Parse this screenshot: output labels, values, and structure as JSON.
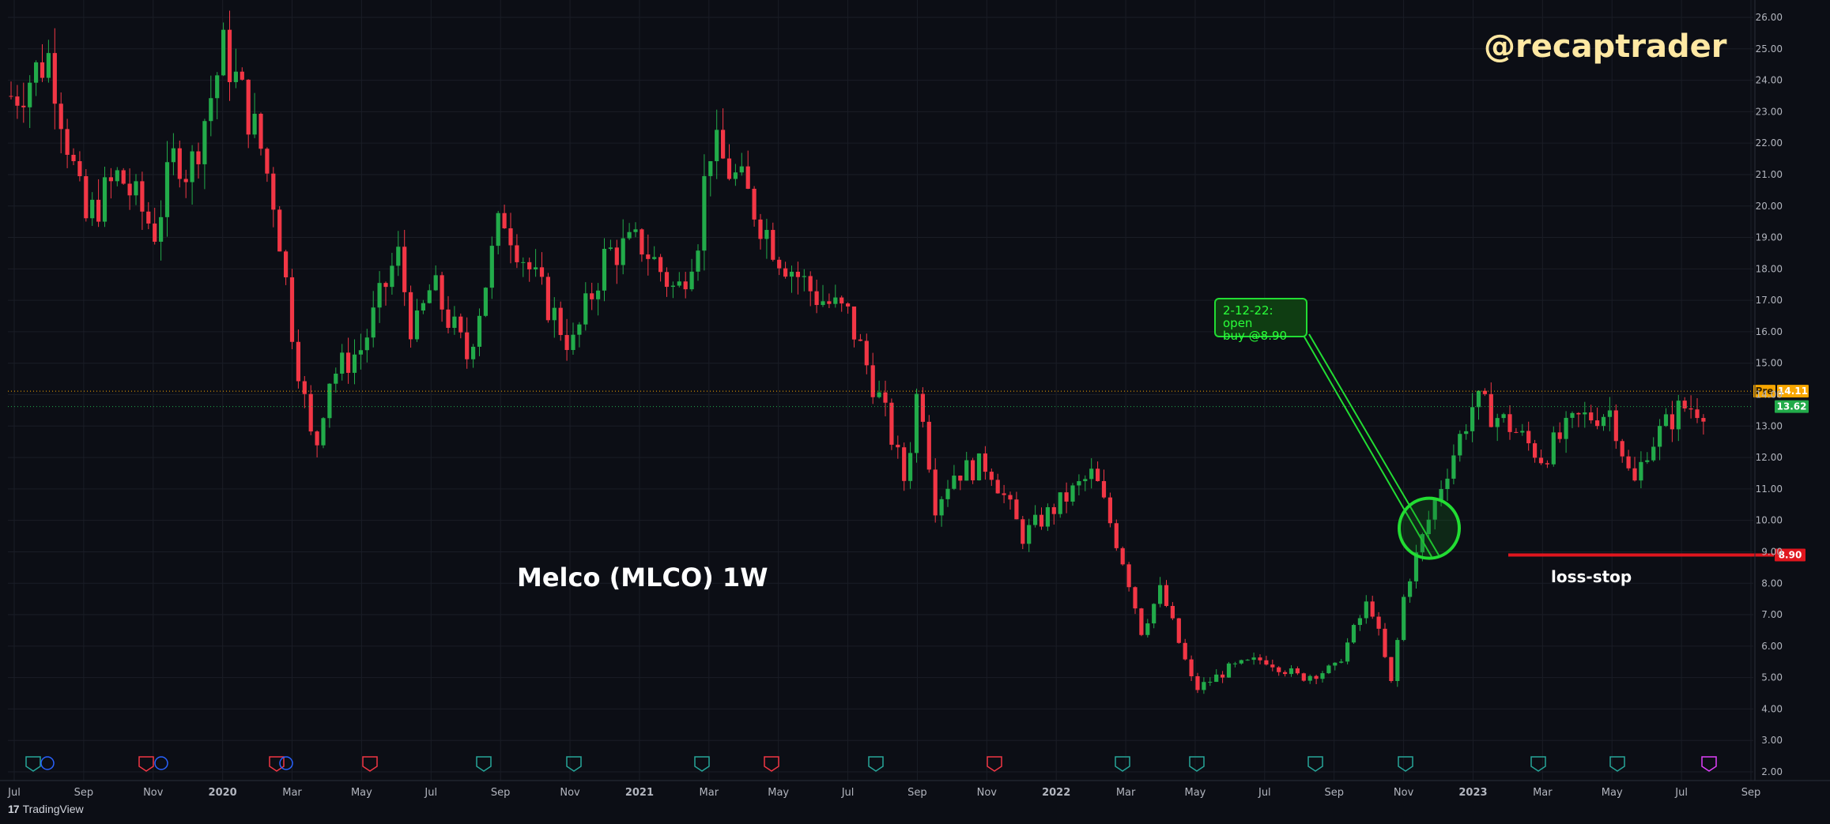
{
  "watermark": "@recaptrader",
  "title": "Melco (MLCO) 1W",
  "annotation": {
    "line1": "2-12-22: open",
    "line2": "buy @8.90"
  },
  "stop_label": "loss-stop",
  "brand": {
    "logo": "17",
    "name": "TradingView"
  },
  "price_labels": {
    "pre_tag": "Pre",
    "pre_value": "14.11",
    "last_value": "13.62",
    "stop_value": "8.90"
  },
  "colors": {
    "up": "#22ab4a",
    "down": "#f23645",
    "pre": "#f7a600",
    "last": "#22ab4a",
    "stop": "#e0161e",
    "annotation": "#22dd33",
    "background": "#0c0e15",
    "grid": "#1a1d26"
  },
  "chart_data": {
    "type": "candlestick",
    "ylim": [
      2,
      26
    ],
    "y_ticks": [
      2,
      3,
      4,
      5,
      6,
      7,
      8,
      9,
      10,
      11,
      12,
      13,
      14,
      15,
      16,
      17,
      18,
      19,
      20,
      21,
      22,
      23,
      24,
      25,
      26
    ],
    "x_ticks": [
      "Jul",
      "Sep",
      "Nov",
      "2020",
      "Mar",
      "May",
      "Jul",
      "Sep",
      "Nov",
      "2021",
      "Mar",
      "May",
      "Jul",
      "Sep",
      "Nov",
      "2022",
      "Mar",
      "May",
      "Jul",
      "Sep",
      "Nov",
      "2023",
      "Mar",
      "May",
      "Jul",
      "Sep"
    ],
    "horizontal_lines": [
      {
        "name": "pre-market",
        "value": 14.11,
        "style": "dotted"
      },
      {
        "name": "last",
        "value": 13.62,
        "style": "dotted"
      },
      {
        "name": "loss-stop",
        "value": 8.9,
        "style": "solid"
      }
    ],
    "close_path": [
      [
        "2019-07",
        23.5
      ],
      [
        "2019-08",
        24.8
      ],
      [
        "2019-08-20",
        21.5
      ],
      [
        "2019-09",
        19.5
      ],
      [
        "2019-10",
        21.0
      ],
      [
        "2019-11",
        19.2
      ],
      [
        "2019-11-20",
        21.8
      ],
      [
        "2019-12",
        21.0
      ],
      [
        "2020-01",
        25.0
      ],
      [
        "2020-02",
        22.0
      ],
      [
        "2020-02-15",
        20.0
      ],
      [
        "2020-03",
        16.0
      ],
      [
        "2020-03-20",
        12.0
      ],
      [
        "2020-04",
        14.5
      ],
      [
        "2020-05",
        15.5
      ],
      [
        "2020-06",
        18.5
      ],
      [
        "2020-06-15",
        15.8
      ],
      [
        "2020-07",
        17.5
      ],
      [
        "2020-08",
        15.2
      ],
      [
        "2020-09",
        19.8
      ],
      [
        "2020-10",
        17.5
      ],
      [
        "2020-11",
        15.5
      ],
      [
        "2020-12",
        18.5
      ],
      [
        "2021-01",
        18.8
      ],
      [
        "2021-02",
        17.2
      ],
      [
        "2021-02-20",
        19.2
      ],
      [
        "2021-03",
        22.0
      ],
      [
        "2021-04",
        20.5
      ],
      [
        "2021-05",
        18.5
      ],
      [
        "2021-06",
        17.2
      ],
      [
        "2021-07",
        16.5
      ],
      [
        "2021-08",
        13.5
      ],
      [
        "2021-08-20",
        11.2
      ],
      [
        "2021-09",
        14.5
      ],
      [
        "2021-09-15",
        10.5
      ],
      [
        "2021-10",
        11.5
      ],
      [
        "2021-11",
        11.8
      ],
      [
        "2021-12",
        9.5
      ],
      [
        "2022-01",
        10.5
      ],
      [
        "2022-02",
        11.5
      ],
      [
        "2022-03",
        8.5
      ],
      [
        "2022-03-15",
        6.5
      ],
      [
        "2022-04",
        7.8
      ],
      [
        "2022-05",
        4.6
      ],
      [
        "2022-06",
        5.3
      ],
      [
        "2022-07",
        5.6
      ],
      [
        "2022-08",
        5.0
      ],
      [
        "2022-09",
        5.3
      ],
      [
        "2022-10",
        7.5
      ],
      [
        "2022-10-20",
        4.8
      ],
      [
        "2022-11",
        7.8
      ],
      [
        "2022-12",
        11.0
      ],
      [
        "2023-01",
        13.8
      ],
      [
        "2023-02",
        13.0
      ],
      [
        "2023-03",
        12.0
      ],
      [
        "2023-04",
        13.2
      ],
      [
        "2023-05",
        13.5
      ],
      [
        "2023-05-20",
        11.0
      ],
      [
        "2023-06",
        12.3
      ],
      [
        "2023-07",
        13.6
      ]
    ]
  }
}
